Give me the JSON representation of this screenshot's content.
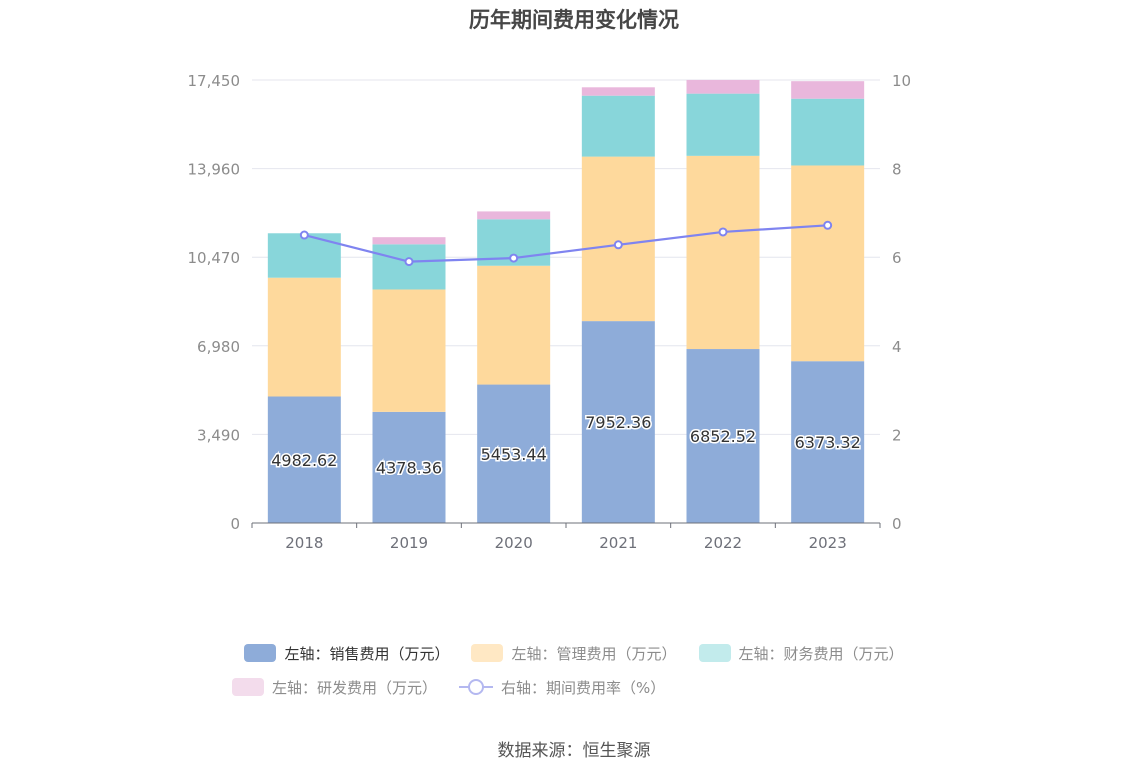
{
  "chart_data": {
    "type": "bar",
    "stacked": true,
    "title": "历年期间费用变化情况",
    "categories": [
      "2018",
      "2019",
      "2020",
      "2021",
      "2022",
      "2023"
    ],
    "y_left": {
      "ticks": [
        "0",
        "3,490",
        "6,980",
        "10,470",
        "13,960",
        "17,450"
      ],
      "range": [
        0,
        17450
      ]
    },
    "y_right": {
      "ticks": [
        "0",
        "2",
        "4",
        "6",
        "8",
        "10"
      ],
      "range": [
        0,
        10
      ]
    },
    "series": [
      {
        "name": "左轴：销售费用（万元）",
        "axis": "left",
        "type": "bar",
        "color": "#8eacd9",
        "values": [
          4982.62,
          4378.36,
          5453.44,
          7952.36,
          6852.52,
          6373.32
        ],
        "labels": [
          "4982.62",
          "4378.36",
          "5453.44",
          "7952.36",
          "6852.52",
          "6373.32"
        ]
      },
      {
        "name": "左轴：管理费用（万元）",
        "axis": "left",
        "type": "bar",
        "color": "#fed99c",
        "values": [
          4680,
          4820,
          4680,
          6480,
          7610,
          7710
        ]
      },
      {
        "name": "左轴：财务费用（万元）",
        "axis": "left",
        "type": "bar",
        "color": "#88d6da",
        "values": [
          1750,
          1780,
          1830,
          2400,
          2450,
          2630
        ]
      },
      {
        "name": "左轴：研发费用（万元）",
        "axis": "left",
        "type": "bar",
        "color": "#e9b7dc",
        "values": [
          0,
          280,
          310,
          330,
          540,
          690
        ]
      },
      {
        "name": "右轴：期间费用率（%）",
        "axis": "right",
        "type": "line",
        "color": "#7f84f0",
        "values": [
          6.5,
          5.9,
          5.98,
          6.28,
          6.57,
          6.72
        ]
      }
    ],
    "legend_position": "bottom",
    "grid": true
  },
  "source": "数据来源：恒生聚源"
}
